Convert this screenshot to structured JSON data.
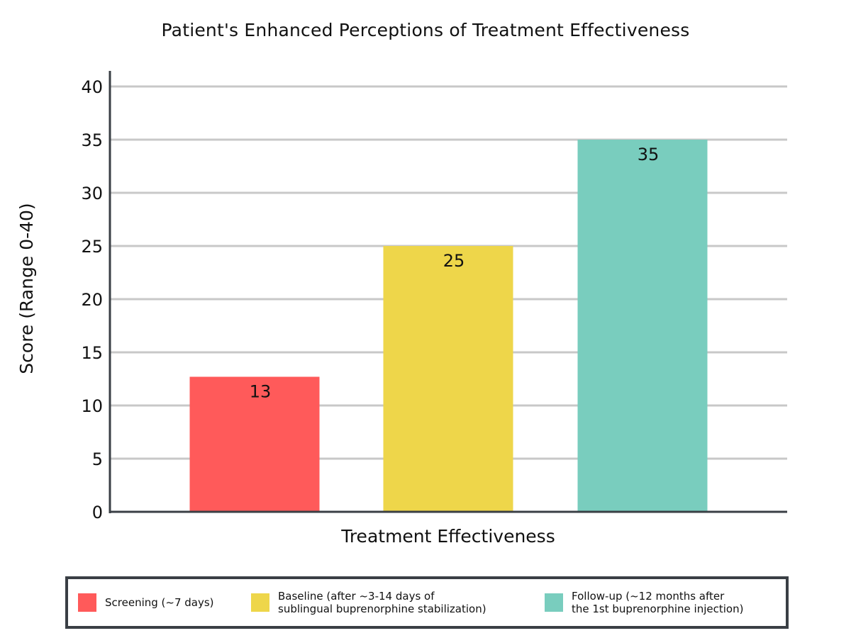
{
  "chart_data": {
    "type": "bar",
    "title": "Patient's Enhanced Perceptions of Treatment Effectiveness",
    "xlabel": "Treatment Effectiveness",
    "ylabel": "Score (Range 0-40)",
    "ylim": [
      0,
      40
    ],
    "yticks": [
      0,
      5,
      10,
      15,
      20,
      25,
      30,
      35,
      40
    ],
    "grid": true,
    "legend_position": "bottom",
    "categories": [
      "Screening (~7 days)",
      "Baseline (after ~3-14 days of sublingual buprenorphine stabilization)",
      "Follow-up (~12 months after the 1st buprenorphine injection)"
    ],
    "values": [
      12.7,
      25,
      35
    ],
    "data_labels": [
      "13",
      "25",
      "35"
    ],
    "colors": [
      "#ff5a5a",
      "#eed64a",
      "#79cdbe"
    ]
  },
  "legend": {
    "items": [
      {
        "label": "Screening (~7 days)",
        "color": "#ff5a5a"
      },
      {
        "label": "Baseline (after ~3-14 days of\nsublingual buprenorphine stabilization)",
        "color": "#eed64a"
      },
      {
        "label": "Follow-up (~12 months after\nthe 1st buprenorphine injection)",
        "color": "#79cdbe"
      }
    ]
  },
  "colors": {
    "axis": "#3a3f45",
    "grid": "#c8c8c8",
    "text": "#111111"
  }
}
